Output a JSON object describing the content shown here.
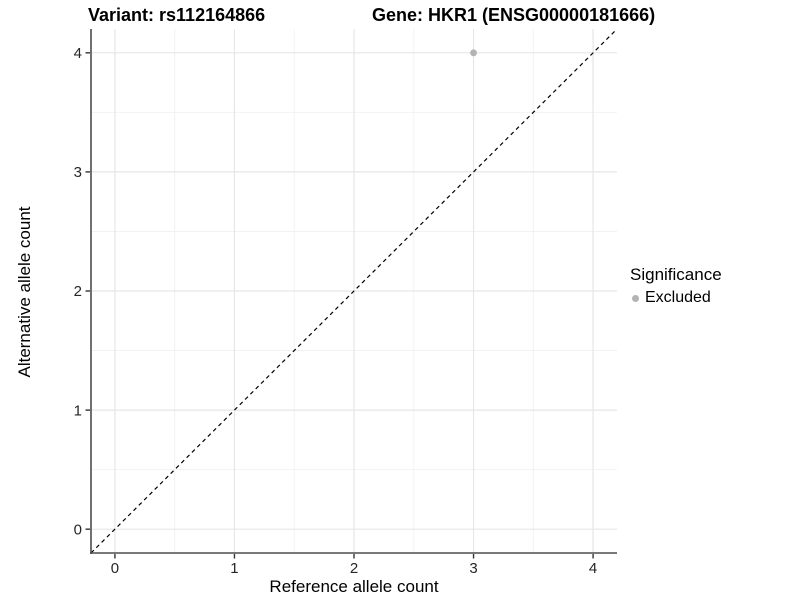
{
  "titles": {
    "left": "Variant: rs112164866",
    "right": "Gene: HKR1 (ENSG00000181666)"
  },
  "chart_data": {
    "type": "scatter",
    "title_left": "Variant: rs112164866",
    "title_right": "Gene: HKR1 (ENSG00000181666)",
    "xlabel": "Reference allele count",
    "ylabel": "Alternative allele count",
    "xlim": [
      -0.2,
      4.2
    ],
    "ylim": [
      -0.2,
      4.2
    ],
    "x_ticks": [
      0,
      1,
      2,
      3,
      4
    ],
    "y_ticks": [
      0,
      1,
      2,
      3,
      4
    ],
    "grid": true,
    "minor_grid": true,
    "series": [
      {
        "name": "Excluded",
        "color": "#b3b3b3",
        "points": [
          {
            "x": 3,
            "y": 4
          }
        ]
      }
    ],
    "reference_line": {
      "type": "abline",
      "slope": 1,
      "intercept": 0,
      "style": "dashed",
      "color": "#000000"
    },
    "legend": {
      "title": "Significance",
      "position": "right",
      "entries": [
        {
          "label": "Excluded",
          "color": "#b3b3b3"
        }
      ]
    },
    "colors": {
      "major_grid": "#e6e6e6",
      "minor_grid": "#f2f2f2",
      "axis_line": "#4d4d4d",
      "tick_mark": "#333333",
      "tick_label": "#262626"
    }
  }
}
